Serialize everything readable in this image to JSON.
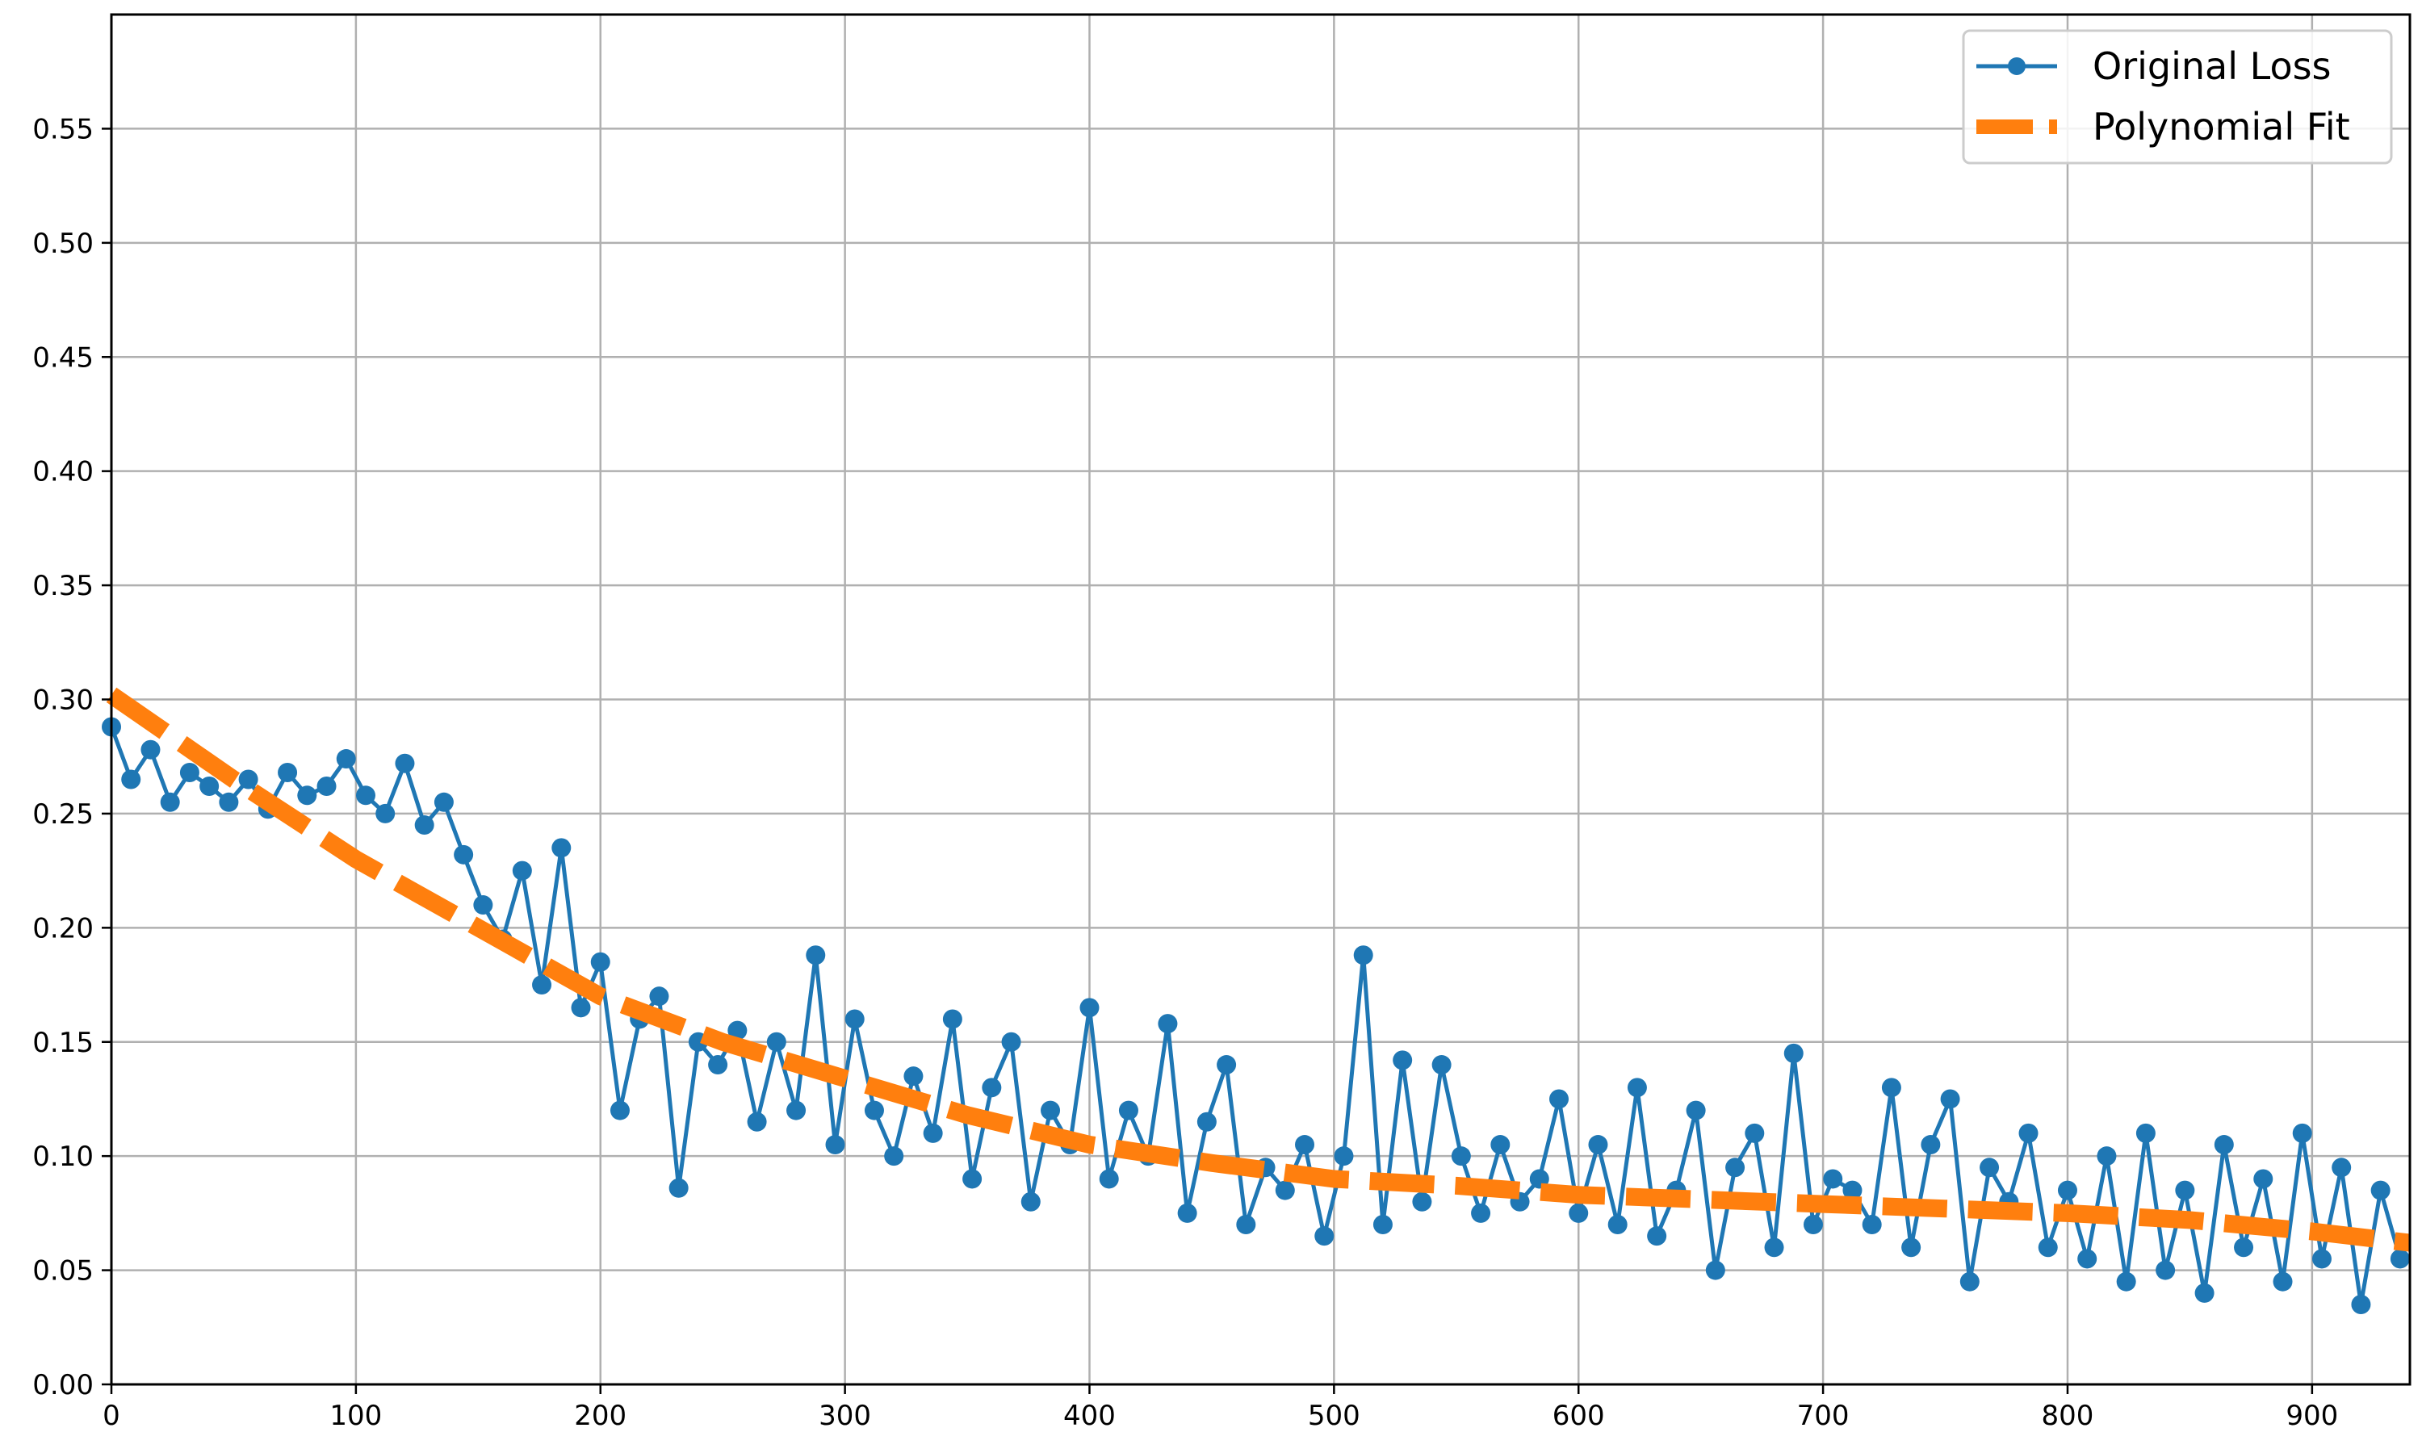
{
  "chart_data": {
    "type": "line",
    "title": "",
    "xlabel": "",
    "ylabel": "",
    "xlim": [
      0,
      940
    ],
    "ylim": [
      0,
      0.6
    ],
    "x_ticks": [
      0,
      100,
      200,
      300,
      400,
      500,
      600,
      700,
      800,
      900
    ],
    "y_ticks": [
      0.0,
      0.05,
      0.1,
      0.15,
      0.2,
      0.25,
      0.3,
      0.35,
      0.4,
      0.45,
      0.5,
      0.55
    ],
    "x_tick_labels": [
      "0",
      "100",
      "200",
      "300",
      "400",
      "500",
      "600",
      "700",
      "800",
      "900"
    ],
    "y_tick_labels": [
      "0.00",
      "0.05",
      "0.10",
      "0.15",
      "0.20",
      "0.25",
      "0.30",
      "0.35",
      "0.40",
      "0.45",
      "0.50",
      "0.55"
    ],
    "grid": true,
    "legend": {
      "placement": "top-right"
    },
    "series": [
      {
        "name": "Original Loss",
        "style": "line-with-circle-markers",
        "color": "#1f77b4",
        "x": [
          0,
          8,
          16,
          24,
          32,
          40,
          48,
          56,
          64,
          72,
          80,
          88,
          96,
          104,
          112,
          120,
          128,
          136,
          144,
          152,
          160,
          168,
          176,
          184,
          192,
          200,
          208,
          216,
          224,
          232,
          240,
          248,
          256,
          264,
          272,
          280,
          288,
          296,
          304,
          312,
          320,
          328,
          336,
          344,
          352,
          360,
          368,
          376,
          384,
          392,
          400,
          408,
          416,
          424,
          432,
          440,
          448,
          456,
          464,
          472,
          480,
          488,
          496,
          504,
          512,
          520,
          528,
          536,
          544,
          552,
          560,
          568,
          576,
          584,
          592,
          600,
          608,
          616,
          624,
          632,
          640,
          648,
          656,
          664,
          672,
          680,
          688,
          696,
          704,
          712,
          720,
          728,
          736,
          744,
          752,
          760,
          768,
          776,
          784,
          792,
          800,
          808,
          816,
          824,
          832,
          840,
          848,
          856,
          864,
          872,
          880,
          888,
          896,
          904,
          912,
          920,
          928,
          936
        ],
        "y": [
          0.288,
          0.265,
          0.278,
          0.255,
          0.268,
          0.262,
          0.255,
          0.265,
          0.252,
          0.268,
          0.258,
          0.262,
          0.274,
          0.258,
          0.25,
          0.272,
          0.245,
          0.255,
          0.232,
          0.21,
          0.195,
          0.225,
          0.175,
          0.235,
          0.165,
          0.185,
          0.12,
          0.16,
          0.17,
          0.086,
          0.15,
          0.14,
          0.155,
          0.115,
          0.15,
          0.12,
          0.188,
          0.105,
          0.16,
          0.12,
          0.1,
          0.135,
          0.11,
          0.16,
          0.09,
          0.13,
          0.15,
          0.08,
          0.12,
          0.105,
          0.165,
          0.09,
          0.12,
          0.1,
          0.158,
          0.075,
          0.115,
          0.14,
          0.07,
          0.095,
          0.085,
          0.105,
          0.065,
          0.1,
          0.188,
          0.07,
          0.142,
          0.08,
          0.14,
          0.1,
          0.075,
          0.105,
          0.08,
          0.09,
          0.125,
          0.075,
          0.105,
          0.07,
          0.13,
          0.065,
          0.085,
          0.12,
          0.05,
          0.095,
          0.11,
          0.06,
          0.145,
          0.07,
          0.09,
          0.085,
          0.07,
          0.13,
          0.06,
          0.105,
          0.125,
          0.045,
          0.095,
          0.08,
          0.11,
          0.06,
          0.085,
          0.055,
          0.1,
          0.045,
          0.11,
          0.05,
          0.085,
          0.04,
          0.105,
          0.06,
          0.09,
          0.045,
          0.11,
          0.055,
          0.095,
          0.035,
          0.085,
          0.055
        ]
      },
      {
        "name": "Polynomial Fit",
        "style": "thick-dashed-line",
        "color": "#ff7f0e",
        "x": [
          0,
          50,
          100,
          150,
          200,
          250,
          300,
          350,
          400,
          450,
          500,
          550,
          600,
          650,
          700,
          750,
          800,
          850,
          900,
          940
        ],
        "y": [
          0.302,
          0.265,
          0.23,
          0.2,
          0.17,
          0.15,
          0.134,
          0.118,
          0.105,
          0.097,
          0.09,
          0.087,
          0.083,
          0.081,
          0.079,
          0.077,
          0.075,
          0.072,
          0.067,
          0.062
        ]
      }
    ]
  }
}
